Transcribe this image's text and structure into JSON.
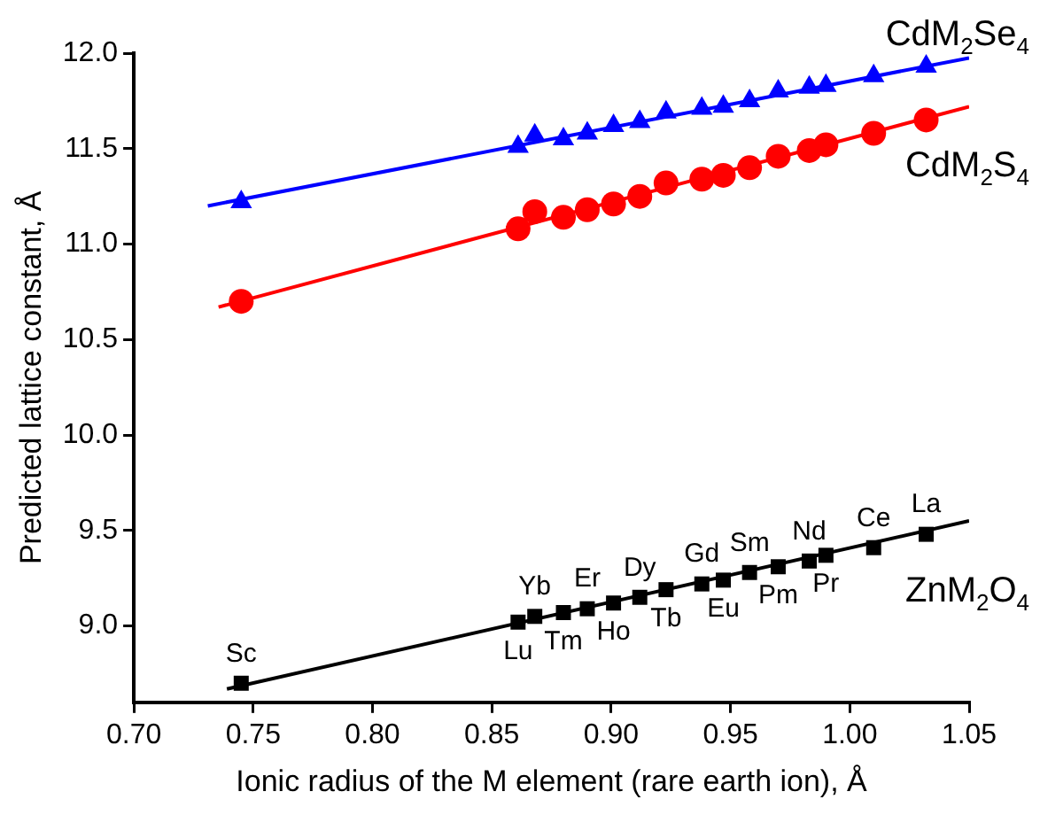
{
  "chart_data": {
    "type": "scatter",
    "xlabel": "Ionic radius of the M element (rare earth ion), Å",
    "ylabel": "Predicted lattice constant, Å",
    "xlim": [
      0.7,
      1.05
    ],
    "xticks": [
      {
        "value": 0.7,
        "label": "0.70"
      },
      {
        "value": 0.75,
        "label": "0.75"
      },
      {
        "value": 0.8,
        "label": "0.80"
      },
      {
        "value": 0.85,
        "label": "0.85"
      },
      {
        "value": 0.9,
        "label": "0.90"
      },
      {
        "value": 0.95,
        "label": "0.95"
      },
      {
        "value": 1.0,
        "label": "1.00"
      },
      {
        "value": 1.05,
        "label": "1.05"
      }
    ],
    "ylim": [
      8.6,
      12.0
    ],
    "yticks": [
      {
        "value": 9.0,
        "label": "9.0"
      },
      {
        "value": 9.5,
        "label": "9.5"
      },
      {
        "value": 10.0,
        "label": "10.0"
      },
      {
        "value": 10.5,
        "label": "10.5"
      },
      {
        "value": 11.0,
        "label": "11.0"
      },
      {
        "value": 11.5,
        "label": "11.5"
      },
      {
        "value": 12.0,
        "label": "12.0"
      }
    ],
    "grid": false,
    "legend": false,
    "x": [
      0.745,
      0.861,
      0.868,
      0.88,
      0.89,
      0.901,
      0.912,
      0.923,
      0.938,
      0.947,
      0.958,
      0.97,
      0.983,
      0.99,
      1.01,
      1.032
    ],
    "series": [
      {
        "name": "CdM$_{2}$Se$_{4}$",
        "color": "#0000ff",
        "marker": "triangle",
        "values": [
          11.22,
          11.51,
          11.57,
          11.55,
          11.58,
          11.62,
          11.64,
          11.69,
          11.71,
          11.72,
          11.75,
          11.8,
          11.82,
          11.83,
          11.88,
          11.93
        ]
      },
      {
        "name": "CdM$_{2}$S$_{4}$",
        "color": "#ff0000",
        "marker": "circle",
        "values": [
          10.7,
          11.08,
          11.17,
          11.14,
          11.18,
          11.21,
          11.25,
          11.32,
          11.34,
          11.36,
          11.4,
          11.46,
          11.49,
          11.52,
          11.58,
          11.65
        ]
      },
      {
        "name": "ZnM$_{2}$O$_{4}$",
        "color": "#000000",
        "marker": "square",
        "values": [
          8.7,
          9.02,
          9.05,
          9.07,
          9.09,
          9.12,
          9.15,
          9.19,
          9.22,
          9.24,
          9.28,
          9.31,
          9.34,
          9.37,
          9.41,
          9.48
        ]
      },
      {
        "type": "line",
        "color": "#0000ff",
        "marker": "none",
        "x": [
          0.731,
          1.05
        ],
        "values": [
          11.2,
          11.975
        ]
      },
      {
        "type": "line",
        "color": "#ff0000",
        "marker": "none",
        "x": [
          0.7355,
          1.05
        ],
        "values": [
          10.67,
          11.72
        ]
      },
      {
        "type": "line",
        "color": "#000000",
        "marker": "none",
        "x": [
          0.739,
          1.05
        ],
        "values": [
          8.67,
          9.55
        ]
      }
    ],
    "annotations": [
      {
        "text": "Sc",
        "x": 0.745,
        "y": 8.7
      },
      {
        "text": "Lu",
        "x": 0.861,
        "y": 9.02
      },
      {
        "text": "Yb",
        "x": 0.868,
        "y": 9.05
      },
      {
        "text": "Tm",
        "x": 0.88,
        "y": 9.07
      },
      {
        "text": "Er",
        "x": 0.89,
        "y": 9.09
      },
      {
        "text": "Ho",
        "x": 0.901,
        "y": 9.12
      },
      {
        "text": "Dy",
        "x": 0.912,
        "y": 9.15
      },
      {
        "text": "Tb",
        "x": 0.923,
        "y": 9.19
      },
      {
        "text": "Gd",
        "x": 0.938,
        "y": 9.22
      },
      {
        "text": "Eu",
        "x": 0.947,
        "y": 9.24
      },
      {
        "text": "Sm",
        "x": 0.958,
        "y": 9.28
      },
      {
        "text": "Pm",
        "x": 0.97,
        "y": 9.31
      },
      {
        "text": "Nd",
        "x": 0.983,
        "y": 9.34
      },
      {
        "text": "Pr",
        "x": 0.99,
        "y": 9.37
      },
      {
        "text": "Ce",
        "x": 1.01,
        "y": 9.41
      },
      {
        "text": "La",
        "x": 1.032,
        "y": 9.48
      }
    ]
  }
}
